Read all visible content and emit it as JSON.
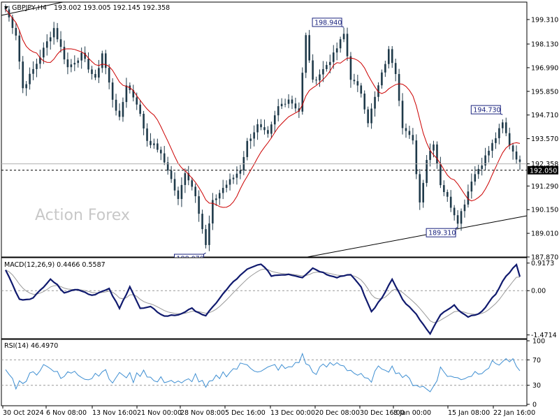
{
  "chart_data": [
    {
      "type": "candlestick",
      "panel": "price",
      "symbol_label": "GBPJPY,H4",
      "ohlc_readout": "193.002 193.005 192.145 192.358",
      "y_ticks": [
        "199.310",
        "198.130",
        "196.990",
        "195.850",
        "194.710",
        "193.570",
        "192.358",
        "191.290",
        "190.150",
        "189.010",
        "187.870"
      ],
      "ylim": [
        187.87,
        200.15
      ],
      "x_labels": [
        "30 Oct 2024",
        "6 Nov 08:00",
        "13 Nov 16:00",
        "21 Nov 00:00",
        "28 Nov 08:00",
        "5 Dec 16:00",
        "13 Dec 00:00",
        "20 Dec 08:00",
        "30 Dec 16:00",
        "8 Jan 00:00",
        "15 Jan 08:00",
        "22 Jan 16:00"
      ],
      "bar_count": 150,
      "current_price_label": "192.358",
      "horizontal_level_label": "192.050",
      "horizontal_level": 192.05,
      "annotations": [
        {
          "text": "198.940",
          "bar": 98,
          "price": 198.94
        },
        {
          "text": "188.070",
          "bar": 58,
          "price": 188.07
        },
        {
          "text": "194.730",
          "bar": 144,
          "price": 194.73
        },
        {
          "text": "189.310",
          "bar": 131,
          "price": 189.31
        }
      ],
      "moving_average_color": "#cc0000",
      "bar_color": "#1f3a4a",
      "watermark": "Action Forex",
      "key_points": [
        [
          0,
          199.8
        ],
        [
          3,
          198.6
        ],
        [
          5,
          196.0
        ],
        [
          9,
          197.2
        ],
        [
          14,
          198.9
        ],
        [
          18,
          197.0
        ],
        [
          22,
          197.6
        ],
        [
          26,
          196.4
        ],
        [
          28,
          197.7
        ],
        [
          31,
          195.5
        ],
        [
          33,
          194.5
        ],
        [
          35,
          196.2
        ],
        [
          38,
          195.3
        ],
        [
          41,
          193.5
        ],
        [
          44,
          193.1
        ],
        [
          47,
          192.1
        ],
        [
          50,
          190.6
        ],
        [
          52,
          192.0
        ],
        [
          55,
          190.9
        ],
        [
          58,
          188.4
        ],
        [
          60,
          190.5
        ],
        [
          63,
          191.2
        ],
        [
          66,
          191.7
        ],
        [
          68,
          192.1
        ],
        [
          70,
          193.4
        ],
        [
          73,
          194.2
        ],
        [
          76,
          193.7
        ],
        [
          79,
          195.1
        ],
        [
          82,
          195.5
        ],
        [
          85,
          194.9
        ],
        [
          87,
          198.5
        ],
        [
          89,
          196.3
        ],
        [
          92,
          196.9
        ],
        [
          95,
          197.6
        ],
        [
          98,
          198.6
        ],
        [
          100,
          196.5
        ],
        [
          103,
          195.8
        ],
        [
          105,
          194.4
        ],
        [
          108,
          196.1
        ],
        [
          111,
          197.8
        ],
        [
          113,
          196.8
        ],
        [
          115,
          194.2
        ],
        [
          118,
          193.4
        ],
        [
          120,
          190.5
        ],
        [
          122,
          192.6
        ],
        [
          124,
          193.4
        ],
        [
          126,
          191.4
        ],
        [
          128,
          190.7
        ],
        [
          131,
          189.6
        ],
        [
          133,
          190.5
        ],
        [
          135,
          191.6
        ],
        [
          138,
          192.4
        ],
        [
          141,
          193.3
        ],
        [
          144,
          194.3
        ],
        [
          146,
          193.3
        ],
        [
          149,
          192.36
        ]
      ]
    },
    {
      "type": "line",
      "panel": "macd",
      "title": "MACD(12,26,9) 0.4466 0.5587",
      "y_ticks": [
        "0.9173",
        "0.00",
        "-1.4714"
      ],
      "ylim": [
        -1.55,
        1.05
      ],
      "series": [
        {
          "role": "macd",
          "color": "#101a6e"
        },
        {
          "role": "signal",
          "color": "#999999"
        }
      ],
      "macd_key_points": [
        [
          0,
          0.7
        ],
        [
          4,
          -0.3
        ],
        [
          8,
          -0.25
        ],
        [
          13,
          0.4
        ],
        [
          17,
          -0.05
        ],
        [
          21,
          0.05
        ],
        [
          25,
          -0.15
        ],
        [
          30,
          0.05
        ],
        [
          33,
          -0.6
        ],
        [
          36,
          0.15
        ],
        [
          39,
          -0.6
        ],
        [
          42,
          -0.55
        ],
        [
          46,
          -0.85
        ],
        [
          50,
          -0.8
        ],
        [
          54,
          -0.6
        ],
        [
          58,
          -0.85
        ],
        [
          62,
          -0.25
        ],
        [
          66,
          0.3
        ],
        [
          70,
          0.7
        ],
        [
          74,
          0.9
        ],
        [
          77,
          0.5
        ],
        [
          82,
          0.55
        ],
        [
          86,
          0.45
        ],
        [
          89,
          0.75
        ],
        [
          93,
          0.55
        ],
        [
          96,
          0.45
        ],
        [
          100,
          0.55
        ],
        [
          103,
          0.1
        ],
        [
          106,
          -0.7
        ],
        [
          109,
          -0.25
        ],
        [
          112,
          0.4
        ],
        [
          115,
          -0.3
        ],
        [
          119,
          -0.8
        ],
        [
          123,
          -1.45
        ],
        [
          126,
          -0.8
        ],
        [
          130,
          -0.5
        ],
        [
          134,
          -0.9
        ],
        [
          138,
          -0.7
        ],
        [
          142,
          -0.1
        ],
        [
          145,
          0.5
        ],
        [
          148,
          0.85
        ],
        [
          149,
          0.45
        ]
      ]
    },
    {
      "type": "line",
      "panel": "rsi",
      "title": "RSI(14) 46.4970",
      "y_ticks": [
        "100",
        "70",
        "30",
        "0"
      ],
      "ylim": [
        0,
        100
      ],
      "reference_levels": [
        70,
        30
      ],
      "series": [
        {
          "role": "rsi",
          "color": "#3f8fd2"
        }
      ],
      "rsi_key_points": [
        [
          0,
          55
        ],
        [
          3,
          30
        ],
        [
          7,
          45
        ],
        [
          12,
          65
        ],
        [
          16,
          40
        ],
        [
          20,
          55
        ],
        [
          24,
          40
        ],
        [
          28,
          55
        ],
        [
          31,
          35
        ],
        [
          34,
          50
        ],
        [
          37,
          40
        ],
        [
          40,
          55
        ],
        [
          43,
          35
        ],
        [
          47,
          40
        ],
        [
          51,
          30
        ],
        [
          55,
          45
        ],
        [
          58,
          25
        ],
        [
          62,
          45
        ],
        [
          66,
          55
        ],
        [
          70,
          65
        ],
        [
          74,
          50
        ],
        [
          78,
          60
        ],
        [
          82,
          55
        ],
        [
          86,
          75
        ],
        [
          89,
          50
        ],
        [
          93,
          60
        ],
        [
          97,
          65
        ],
        [
          101,
          50
        ],
        [
          105,
          35
        ],
        [
          109,
          60
        ],
        [
          113,
          55
        ],
        [
          116,
          40
        ],
        [
          120,
          30
        ],
        [
          123,
          20
        ],
        [
          126,
          55
        ],
        [
          130,
          40
        ],
        [
          134,
          45
        ],
        [
          138,
          55
        ],
        [
          142,
          65
        ],
        [
          146,
          70
        ],
        [
          148,
          60
        ],
        [
          149,
          46
        ]
      ]
    }
  ]
}
